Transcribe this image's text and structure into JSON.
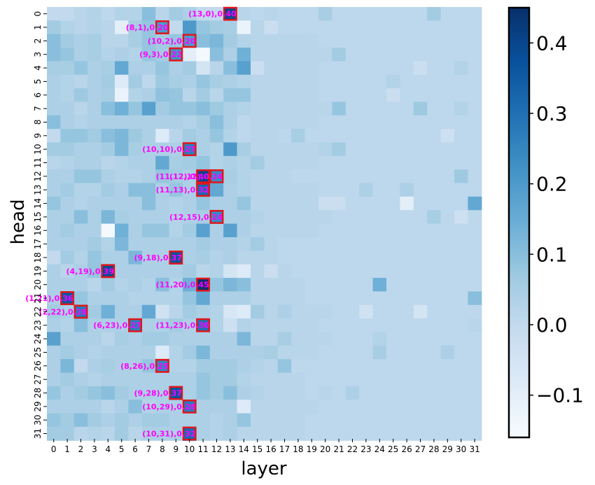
{
  "chart_data": {
    "type": "heatmap",
    "xlabel": "layer",
    "ylabel": "head",
    "x_ticks": [
      "0",
      "1",
      "2",
      "3",
      "4",
      "5",
      "6",
      "7",
      "8",
      "9",
      "10",
      "11",
      "12",
      "13",
      "14",
      "15",
      "16",
      "17",
      "18",
      "19",
      "20",
      "21",
      "22",
      "23",
      "24",
      "25",
      "26",
      "27",
      "28",
      "29",
      "30",
      "31"
    ],
    "y_ticks": [
      "0",
      "1",
      "2",
      "3",
      "4",
      "5",
      "6",
      "7",
      "8",
      "9",
      "10",
      "11",
      "12",
      "13",
      "14",
      "15",
      "16",
      "17",
      "18",
      "19",
      "20",
      "21",
      "22",
      "23",
      "24",
      "25",
      "26",
      "27",
      "28",
      "29",
      "30",
      "31"
    ],
    "colormap": "Blues",
    "vmin": -0.16,
    "vmax": 0.45,
    "colorbar_ticks": [
      "0.4",
      "0.3",
      "0.2",
      "0.1",
      "0.0",
      "−0.1"
    ],
    "colorbar_tick_values": [
      0.4,
      0.3,
      0.2,
      0.1,
      0.0,
      -0.1
    ],
    "highlight_border_color": "#e0161b",
    "annotation_color": "#ff00ff",
    "annotations": [
      {
        "layer": 13,
        "head": 0,
        "label": "(13,0),0.40",
        "value": 0.4
      },
      {
        "layer": 8,
        "head": 1,
        "label": "(8,1),0.20",
        "value": 0.2
      },
      {
        "layer": 10,
        "head": 2,
        "label": "(10,2),0.20",
        "value": 0.2
      },
      {
        "layer": 9,
        "head": 3,
        "label": "(9,3),0.22",
        "value": 0.22
      },
      {
        "layer": 10,
        "head": 10,
        "label": "(10,10),0.27",
        "value": 0.27
      },
      {
        "layer": 11,
        "head": 12,
        "label": "(11,12),0.40",
        "value": 0.4
      },
      {
        "layer": 12,
        "head": 12,
        "label": "(12,12),0.24",
        "value": 0.24
      },
      {
        "layer": 11,
        "head": 13,
        "label": "(11,13),0.32",
        "value": 0.32
      },
      {
        "layer": 12,
        "head": 15,
        "label": "(12,15),0.24",
        "value": 0.24
      },
      {
        "layer": 9,
        "head": 18,
        "label": "(9,18),0.37",
        "value": 0.37
      },
      {
        "layer": 4,
        "head": 19,
        "label": "(4,19),0.39",
        "value": 0.39
      },
      {
        "layer": 11,
        "head": 20,
        "label": "(11,20),0.45",
        "value": 0.45
      },
      {
        "layer": 1,
        "head": 21,
        "label": "(1,21),0.36",
        "value": 0.36
      },
      {
        "layer": 2,
        "head": 22,
        "label": "(2,22),0.28",
        "value": 0.28
      },
      {
        "layer": 6,
        "head": 23,
        "label": "(6,23),0.27",
        "value": 0.27
      },
      {
        "layer": 11,
        "head": 23,
        "label": "(11,23),0.30",
        "value": 0.3
      },
      {
        "layer": 8,
        "head": 26,
        "label": "(8,26),0.25",
        "value": 0.25
      },
      {
        "layer": 9,
        "head": 28,
        "label": "(9,28),0.37",
        "value": 0.37
      },
      {
        "layer": 10,
        "head": 29,
        "label": "(10,29),0.28",
        "value": 0.28
      },
      {
        "layer": 10,
        "head": 31,
        "label": "(10,31),0.32",
        "value": 0.32
      }
    ],
    "values": [
      [
        0.0,
        0.0,
        0.02,
        0.03,
        0.01,
        0.03,
        0.03,
        0.1,
        0.02,
        0.06,
        0.04,
        0.0,
        0.0,
        0.4,
        0.02,
        0.01,
        0.02,
        0.01,
        0.01,
        0.01,
        0.05,
        0.01,
        0.01,
        0.01,
        0.01,
        0.01,
        0.01,
        0.01,
        0.06,
        0.01,
        0.01,
        0.01
      ],
      [
        0.06,
        0.03,
        0.02,
        0.03,
        0.02,
        -0.1,
        0.05,
        0.08,
        0.2,
        0.0,
        0.2,
        0.08,
        0.06,
        0.05,
        -0.12,
        0.02,
        -0.02,
        0.01,
        0.01,
        0.01,
        0.01,
        0.01,
        0.01,
        0.01,
        0.01,
        0.01,
        0.01,
        0.01,
        0.01,
        0.01,
        0.01,
        0.01
      ],
      [
        0.1,
        0.06,
        0.04,
        0.05,
        0.02,
        0.02,
        0.05,
        0.08,
        0.06,
        0.08,
        0.2,
        0.1,
        0.12,
        0.06,
        0.03,
        0.02,
        0.02,
        0.02,
        0.02,
        0.02,
        0.01,
        0.01,
        0.01,
        0.01,
        0.01,
        0.01,
        0.01,
        0.01,
        0.01,
        0.01,
        0.01,
        0.01
      ],
      [
        0.1,
        0.08,
        0.04,
        0.05,
        0.03,
        0.04,
        0.03,
        0.08,
        0.06,
        0.22,
        -0.1,
        -0.15,
        0.1,
        0.04,
        0.14,
        0.02,
        0.02,
        0.02,
        0.02,
        0.02,
        0.02,
        0.06,
        0.01,
        0.01,
        0.01,
        0.01,
        0.01,
        0.01,
        0.01,
        0.01,
        0.01,
        0.01
      ],
      [
        0.05,
        0.05,
        0.08,
        0.04,
        0.05,
        0.16,
        0.04,
        0.04,
        0.08,
        0.04,
        0.06,
        -0.05,
        0.02,
        0.1,
        0.18,
        -0.02,
        0.02,
        0.02,
        0.02,
        0.02,
        0.01,
        0.01,
        0.01,
        0.01,
        0.01,
        0.01,
        0.01,
        -0.02,
        0.01,
        0.01,
        0.03,
        0.01
      ],
      [
        0.04,
        0.03,
        0.02,
        0.04,
        0.06,
        -0.08,
        0.06,
        0.01,
        0.07,
        0.05,
        0.04,
        0.08,
        0.05,
        0.04,
        0.03,
        0.02,
        0.02,
        0.02,
        0.02,
        0.02,
        0.01,
        0.01,
        0.01,
        0.01,
        0.01,
        0.03,
        0.01,
        0.01,
        0.01,
        0.01,
        0.01,
        0.01
      ],
      [
        0.04,
        0.03,
        0.07,
        0.04,
        0.05,
        -0.12,
        0.03,
        0.04,
        0.09,
        0.08,
        0.02,
        0.06,
        0.02,
        0.08,
        0.08,
        0.02,
        0.02,
        0.02,
        0.02,
        0.02,
        0.01,
        0.01,
        0.01,
        0.01,
        0.01,
        -0.02,
        0.01,
        0.01,
        0.01,
        0.01,
        0.01,
        0.01
      ],
      [
        0.04,
        0.04,
        0.02,
        0.04,
        0.1,
        0.14,
        0.08,
        0.18,
        0.06,
        0.08,
        0.08,
        0.1,
        0.07,
        0.04,
        0.03,
        0.02,
        0.02,
        0.02,
        0.02,
        0.02,
        0.02,
        0.08,
        0.01,
        0.01,
        0.01,
        0.01,
        0.01,
        0.07,
        0.01,
        0.01,
        0.03,
        0.01
      ],
      [
        0.1,
        0.04,
        0.03,
        0.04,
        0.04,
        0.04,
        0.04,
        0.04,
        0.04,
        0.04,
        0.03,
        0.05,
        0.1,
        0.04,
        0.01,
        0.02,
        0.02,
        0.02,
        0.02,
        0.02,
        0.01,
        0.01,
        0.01,
        0.01,
        0.01,
        0.01,
        0.01,
        0.01,
        0.01,
        0.01,
        0.01,
        0.01
      ],
      [
        0.0,
        0.08,
        0.08,
        0.06,
        0.1,
        0.12,
        0.07,
        0.04,
        -0.08,
        0.02,
        0.06,
        0.04,
        0.08,
        0.03,
        0.01,
        0.02,
        0.02,
        0.01,
        0.05,
        0.01,
        0.01,
        0.01,
        0.01,
        0.01,
        0.01,
        0.01,
        0.01,
        0.01,
        0.01,
        -0.03,
        0.01,
        0.01
      ],
      [
        0.06,
        0.06,
        0.04,
        0.04,
        0.06,
        0.12,
        0.05,
        0.04,
        0.04,
        0.04,
        0.27,
        0.04,
        0.03,
        0.2,
        0.05,
        0.02,
        0.02,
        0.02,
        0.02,
        0.02,
        0.03,
        0.06,
        0.01,
        0.01,
        0.01,
        0.01,
        0.01,
        0.01,
        0.01,
        0.01,
        0.01,
        0.01
      ],
      [
        0.02,
        0.03,
        0.04,
        0.04,
        0.02,
        0.03,
        0.04,
        0.04,
        0.16,
        0.05,
        0.06,
        0.08,
        0.03,
        0.04,
        0.03,
        0.06,
        0.02,
        0.02,
        0.02,
        0.02,
        0.01,
        0.01,
        0.01,
        0.01,
        0.01,
        0.01,
        0.01,
        0.01,
        0.01,
        0.01,
        0.01,
        0.01
      ],
      [
        0.04,
        0.04,
        0.08,
        0.08,
        0.04,
        0.03,
        0.03,
        0.04,
        0.08,
        0.06,
        0.04,
        0.4,
        0.24,
        0.05,
        0.03,
        0.02,
        0.02,
        0.02,
        0.01,
        0.01,
        0.01,
        0.01,
        0.01,
        0.01,
        0.01,
        0.01,
        0.01,
        0.01,
        0.01,
        0.01,
        0.07,
        0.01
      ],
      [
        0.04,
        0.06,
        0.03,
        0.03,
        0.06,
        0.04,
        0.1,
        0.1,
        0.04,
        0.08,
        0.04,
        0.32,
        0.16,
        0.04,
        0.03,
        0.02,
        0.02,
        0.02,
        0.02,
        0.02,
        0.01,
        0.01,
        0.01,
        0.04,
        0.01,
        0.01,
        0.04,
        0.01,
        0.01,
        0.01,
        0.01,
        0.01
      ],
      [
        0.08,
        0.04,
        0.03,
        0.04,
        0.04,
        0.04,
        0.04,
        0.1,
        0.04,
        0.03,
        0.04,
        0.08,
        0.04,
        0.04,
        0.08,
        0.02,
        0.02,
        0.02,
        0.02,
        0.02,
        -0.02,
        -0.02,
        0.01,
        0.01,
        0.01,
        0.01,
        -0.1,
        0.01,
        0.01,
        0.01,
        0.01,
        0.16
      ],
      [
        0.04,
        0.04,
        0.1,
        0.04,
        0.12,
        0.05,
        0.04,
        0.04,
        0.04,
        0.03,
        0.04,
        0.05,
        0.24,
        0.04,
        0.04,
        0.03,
        0.02,
        0.02,
        0.02,
        0.02,
        0.02,
        0.01,
        0.01,
        0.01,
        0.01,
        0.01,
        0.01,
        0.01,
        0.05,
        0.01,
        -0.03,
        0.01
      ],
      [
        0.04,
        0.06,
        0.04,
        0.04,
        -0.15,
        0.14,
        0.04,
        0.08,
        0.08,
        0.03,
        0.06,
        0.18,
        0.04,
        0.18,
        0.04,
        0.02,
        0.02,
        0.02,
        0.02,
        0.02,
        0.01,
        0.01,
        0.01,
        0.01,
        0.01,
        0.01,
        0.01,
        0.01,
        0.01,
        0.01,
        0.01,
        0.01
      ],
      [
        0.04,
        0.04,
        0.04,
        0.06,
        0.03,
        0.12,
        0.04,
        0.04,
        0.04,
        0.04,
        0.04,
        0.06,
        0.04,
        0.04,
        0.03,
        0.06,
        0.02,
        0.01,
        0.01,
        0.01,
        0.01,
        0.01,
        0.01,
        0.01,
        0.01,
        0.01,
        0.01,
        0.01,
        0.01,
        0.01,
        0.01,
        0.01
      ],
      [
        0.0,
        0.06,
        0.03,
        0.08,
        0.04,
        0.04,
        0.12,
        0.04,
        0.04,
        0.37,
        0.04,
        0.05,
        0.03,
        0.04,
        0.02,
        0.02,
        0.02,
        0.01,
        0.01,
        0.01,
        0.01,
        0.01,
        0.01,
        0.01,
        0.01,
        0.01,
        0.01,
        0.01,
        0.01,
        0.01,
        0.01,
        0.01
      ],
      [
        0.04,
        0.02,
        0.04,
        0.08,
        0.39,
        0.04,
        0.04,
        0.04,
        0.04,
        0.04,
        0.06,
        0.02,
        0.03,
        -0.05,
        -0.08,
        0.02,
        -0.02,
        0.02,
        0.01,
        0.01,
        0.01,
        0.01,
        0.01,
        0.01,
        0.01,
        0.01,
        0.01,
        0.01,
        0.01,
        0.01,
        0.01,
        0.01
      ],
      [
        0.04,
        0.04,
        0.04,
        0.02,
        0.06,
        0.03,
        0.04,
        0.03,
        0.1,
        0.03,
        0.14,
        0.45,
        0.08,
        0.12,
        0.1,
        0.02,
        0.02,
        0.02,
        0.02,
        0.01,
        0.01,
        0.01,
        0.01,
        0.01,
        0.14,
        0.01,
        0.01,
        0.01,
        0.01,
        0.01,
        0.01,
        0.01
      ],
      [
        0.04,
        0.36,
        0.08,
        0.04,
        0.04,
        0.04,
        0.03,
        0.03,
        0.03,
        0.03,
        0.08,
        0.16,
        0.04,
        0.04,
        0.04,
        0.02,
        0.02,
        0.02,
        0.02,
        0.01,
        0.01,
        0.01,
        0.01,
        0.01,
        0.01,
        0.01,
        0.01,
        0.01,
        0.01,
        0.01,
        0.01,
        0.1
      ],
      [
        0.06,
        0.04,
        0.28,
        0.06,
        0.14,
        0.04,
        0.04,
        0.16,
        -0.04,
        0.02,
        0.06,
        0.04,
        0.03,
        -0.06,
        -0.08,
        0.06,
        0.02,
        0.04,
        0.02,
        0.02,
        0.02,
        0.01,
        0.01,
        -0.04,
        0.01,
        0.01,
        0.01,
        -0.05,
        0.01,
        0.01,
        0.01,
        0.01
      ],
      [
        0.04,
        0.03,
        0.1,
        0.04,
        0.04,
        0.04,
        0.27,
        0.04,
        0.04,
        0.06,
        0.04,
        0.3,
        0.03,
        -0.03,
        0.03,
        0.02,
        0.02,
        0.02,
        0.02,
        0.02,
        0.01,
        0.01,
        0.01,
        0.01,
        0.01,
        0.01,
        0.01,
        0.01,
        0.01,
        0.01,
        0.01,
        0.02
      ],
      [
        0.18,
        0.04,
        0.04,
        0.04,
        0.02,
        0.05,
        0.04,
        0.06,
        0.06,
        0.04,
        0.04,
        0.04,
        0.04,
        0.04,
        0.12,
        0.02,
        0.02,
        0.05,
        0.02,
        0.02,
        0.02,
        0.01,
        0.01,
        0.01,
        0.03,
        0.01,
        0.01,
        0.01,
        0.01,
        0.01,
        0.01,
        0.01
      ],
      [
        0.04,
        0.06,
        0.04,
        0.03,
        0.04,
        0.04,
        0.04,
        0.04,
        -0.08,
        0.03,
        0.06,
        0.12,
        0.04,
        0.04,
        0.04,
        0.04,
        0.05,
        0.02,
        0.02,
        0.02,
        0.01,
        0.01,
        0.01,
        0.01,
        0.05,
        0.01,
        0.01,
        0.01,
        0.01,
        0.04,
        0.01,
        0.01
      ],
      [
        0.04,
        0.12,
        0.0,
        0.04,
        0.05,
        0.04,
        0.04,
        0.08,
        0.25,
        0.03,
        0.03,
        0.06,
        0.06,
        0.06,
        0.04,
        0.03,
        0.02,
        0.08,
        0.01,
        0.01,
        0.01,
        0.01,
        0.01,
        0.01,
        0.01,
        0.01,
        0.01,
        0.01,
        0.01,
        0.01,
        0.01,
        0.01
      ],
      [
        0.04,
        0.06,
        0.04,
        0.03,
        0.04,
        0.04,
        0.04,
        0.04,
        0.04,
        0.04,
        0.04,
        0.08,
        0.06,
        0.06,
        0.03,
        0.02,
        0.02,
        0.02,
        0.02,
        0.01,
        0.01,
        0.01,
        0.01,
        0.01,
        0.01,
        0.01,
        0.01,
        0.01,
        0.01,
        0.01,
        0.01,
        0.01
      ],
      [
        0.08,
        0.04,
        0.06,
        0.08,
        0.1,
        0.06,
        0.04,
        0.04,
        0.04,
        0.37,
        0.04,
        0.08,
        0.06,
        0.1,
        0.04,
        0.03,
        0.02,
        0.02,
        0.02,
        0.01,
        0.02,
        0.01,
        0.04,
        0.01,
        0.01,
        0.01,
        0.01,
        0.01,
        0.01,
        0.01,
        0.01,
        0.01
      ],
      [
        0.04,
        0.04,
        0.04,
        0.04,
        0.02,
        0.04,
        0.1,
        0.03,
        0.04,
        0.04,
        0.28,
        0.04,
        0.04,
        0.04,
        -0.08,
        0.02,
        0.02,
        0.02,
        0.02,
        0.02,
        0.01,
        0.01,
        0.01,
        0.01,
        0.01,
        0.01,
        0.01,
        0.01,
        0.01,
        0.01,
        0.01,
        0.01
      ],
      [
        0.08,
        0.06,
        0.1,
        0.06,
        0.04,
        0.06,
        0.04,
        0.06,
        0.06,
        0.04,
        0.04,
        0.04,
        0.03,
        0.04,
        0.08,
        0.02,
        0.02,
        0.02,
        0.02,
        0.01,
        0.01,
        0.01,
        0.01,
        0.01,
        0.01,
        0.01,
        0.01,
        0.01,
        0.01,
        0.01,
        0.01,
        0.01
      ],
      [
        0.06,
        0.06,
        0.02,
        0.03,
        0.02,
        0.06,
        0.02,
        0.04,
        0.04,
        0.04,
        0.32,
        0.04,
        0.03,
        0.04,
        0.02,
        0.02,
        0.02,
        0.02,
        0.02,
        0.01,
        0.01,
        0.01,
        0.01,
        0.01,
        0.01,
        0.01,
        0.01,
        0.01,
        0.01,
        0.01,
        0.01,
        0.01
      ]
    ]
  }
}
